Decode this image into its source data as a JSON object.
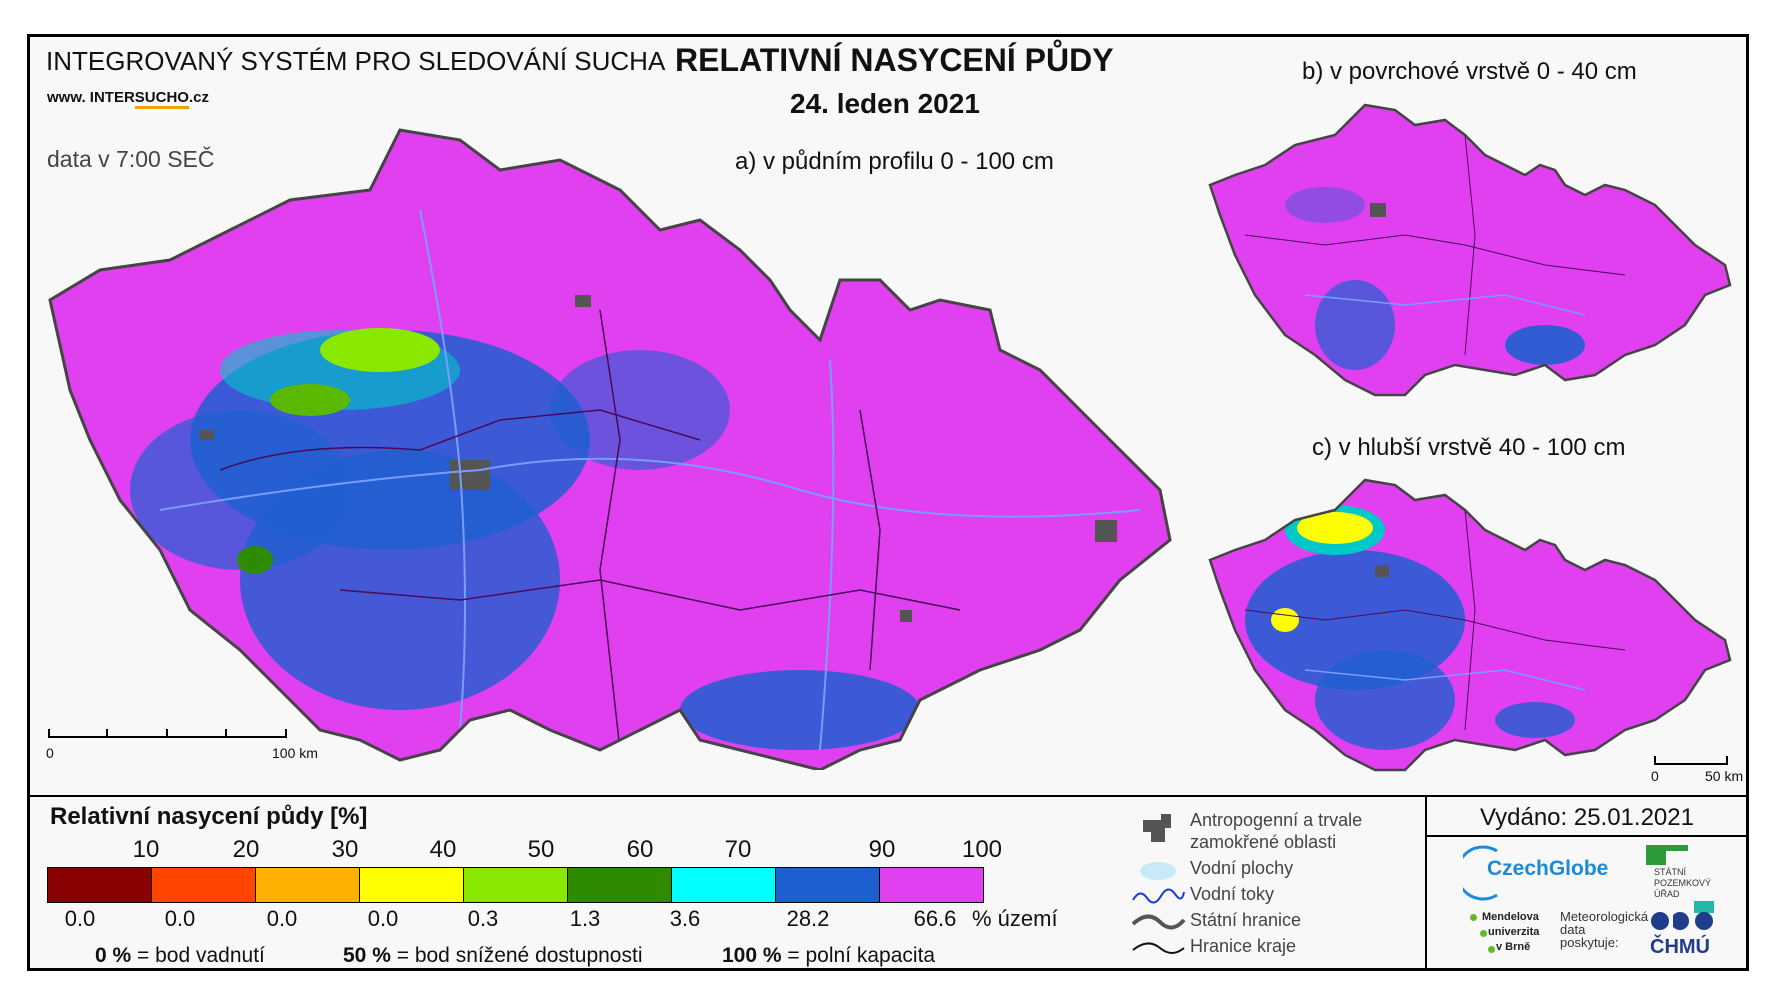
{
  "header": {
    "system_name": "INTEGROVANÝ SYSTÉM PRO SLEDOVÁNÍ SUCHA",
    "website_prefix": "www. INTER",
    "website_highlight": "SUCHO",
    "website_suffix": ".cz",
    "data_time": "data v 7:00 SEČ",
    "title": "RELATIVNÍ NASYCENÍ PŮDY",
    "date": "24. leden 2021"
  },
  "maps": {
    "main_label": "a) v půdním profilu 0 - 100 cm",
    "surface_label": "b) v povrchové vrstvě 0 - 40 cm",
    "deep_label": "c) v hlubší vrstvě 40 - 100 cm",
    "main_scale": {
      "start": "0",
      "end": "100 km"
    },
    "small_scale": {
      "start": "0",
      "end": "50 km"
    }
  },
  "legend": {
    "title": "Relativní nasycení půdy [%]",
    "thresholds": [
      "10",
      "20",
      "30",
      "40",
      "50",
      "60",
      "70",
      "90",
      "100"
    ],
    "colors": [
      "#8b0000",
      "#ff4500",
      "#ffb000",
      "#ffff00",
      "#8ae800",
      "#2e8b00",
      "#00ffff",
      "#1e5fd0",
      "#e040f0"
    ],
    "area_percent": [
      "0.0",
      "0.0",
      "0.0",
      "0.0",
      "0.3",
      "1.3",
      "3.6",
      "28.2",
      "66.6"
    ],
    "area_unit": "% území",
    "notes": [
      {
        "value": "0 %",
        "text": "= bod vadnutí"
      },
      {
        "value": "50 %",
        "text": "= bod snížené dostupnosti"
      },
      {
        "value": "100 %",
        "text": "= polní kapacita"
      }
    ]
  },
  "symbols": {
    "anthropogenic_line1": "Antropogenní a trvale",
    "anthropogenic_line2": "zamokřené oblasti",
    "water_bodies": "Vodní plochy",
    "rivers": "Vodní toky",
    "state_border": "Státní hranice",
    "region_border": "Hranice kraje"
  },
  "issued": "Vydáno: 25.01.2021",
  "logos": {
    "czechglobe": "CzechGlobe",
    "spu_line1": "STÁTNÍ",
    "spu_line2": "POZEMKOVÝ",
    "spu_line3": "ÚŘAD",
    "mendelu_line1": "Mendelova",
    "mendelu_line2": "univerzita",
    "mendelu_line3": "v Brně",
    "meteo_line1": "Meteorologická",
    "meteo_line2": "data",
    "meteo_line3": "poskytuje:",
    "chmu": "ČHMÚ"
  }
}
